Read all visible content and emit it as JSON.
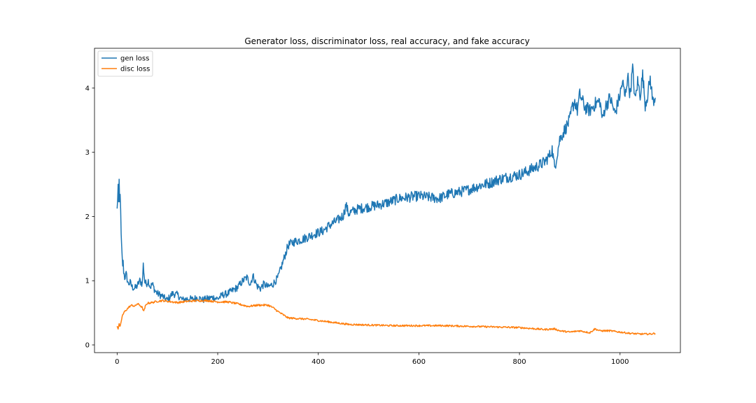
{
  "chart_data": {
    "type": "line",
    "title": "Generator loss, discriminator loss, real accuracy, and fake accuracy",
    "xlabel": "",
    "ylabel": "",
    "xlim": [
      -45,
      1120
    ],
    "ylim": [
      -0.12,
      4.62
    ],
    "xticks": [
      0,
      200,
      400,
      600,
      800,
      1000
    ],
    "yticks": [
      0,
      1,
      2,
      3,
      4
    ],
    "grid": false,
    "legend_position": "upper-left",
    "series": [
      {
        "name": "gen loss",
        "color": "#1f77b4",
        "x": [
          0,
          2,
          3,
          4,
          5,
          6,
          7,
          8,
          9,
          10,
          11,
          12,
          13,
          15,
          18,
          22,
          26,
          30,
          35,
          40,
          45,
          50,
          52,
          55,
          58,
          62,
          66,
          70,
          75,
          80,
          85,
          90,
          95,
          100,
          110,
          120,
          130,
          140,
          150,
          160,
          170,
          180,
          190,
          200,
          210,
          220,
          230,
          240,
          250,
          258,
          265,
          270,
          278,
          285,
          292,
          300,
          310,
          320,
          330,
          340,
          350,
          370,
          390,
          400,
          410,
          420,
          430,
          440,
          450,
          455,
          460,
          480,
          500,
          520,
          540,
          560,
          580,
          600,
          620,
          640,
          660,
          680,
          700,
          720,
          740,
          760,
          780,
          800,
          820,
          840,
          850,
          860,
          865,
          870,
          880,
          890,
          900,
          905,
          910,
          915,
          920,
          930,
          940,
          950,
          960,
          965,
          970,
          980,
          990,
          1000,
          1005,
          1010,
          1015,
          1020,
          1025,
          1030,
          1035,
          1040,
          1045,
          1050,
          1055,
          1060,
          1065,
          1070
        ],
        "y": [
          2.1,
          2.48,
          2.15,
          2.55,
          2.2,
          2.4,
          2.05,
          1.7,
          1.5,
          1.35,
          1.25,
          1.28,
          1.15,
          1.05,
          1.1,
          0.95,
          0.97,
          0.9,
          0.88,
          0.92,
          1.0,
          0.95,
          1.25,
          0.98,
          0.95,
          1.0,
          0.9,
          0.95,
          0.85,
          0.8,
          0.78,
          0.76,
          0.72,
          0.7,
          0.8,
          0.78,
          0.7,
          0.72,
          0.71,
          0.74,
          0.7,
          0.72,
          0.74,
          0.72,
          0.78,
          0.8,
          0.85,
          0.9,
          1.0,
          1.05,
          0.95,
          1.08,
          0.92,
          0.88,
          0.95,
          0.9,
          0.95,
          1.05,
          1.3,
          1.55,
          1.6,
          1.65,
          1.72,
          1.75,
          1.78,
          1.85,
          1.9,
          1.95,
          2.02,
          2.18,
          2.05,
          2.12,
          2.15,
          2.18,
          2.22,
          2.28,
          2.3,
          2.32,
          2.3,
          2.28,
          2.35,
          2.38,
          2.42,
          2.48,
          2.52,
          2.58,
          2.62,
          2.65,
          2.72,
          2.8,
          2.85,
          2.95,
          3.05,
          2.75,
          3.2,
          3.35,
          3.5,
          3.7,
          3.8,
          3.65,
          3.9,
          3.7,
          3.65,
          3.75,
          3.8,
          3.5,
          3.7,
          3.85,
          3.6,
          3.9,
          4.1,
          3.85,
          4.2,
          3.9,
          4.3,
          3.8,
          4.1,
          3.9,
          4.2,
          3.75,
          3.9,
          4.15,
          3.8,
          3.85
        ],
        "noise": 0.07
      },
      {
        "name": "disc loss",
        "color": "#ff7f0e",
        "x": [
          0,
          2,
          4,
          6,
          8,
          10,
          15,
          20,
          25,
          30,
          35,
          40,
          45,
          50,
          53,
          56,
          60,
          70,
          80,
          90,
          100,
          120,
          140,
          160,
          180,
          200,
          220,
          240,
          260,
          280,
          300,
          310,
          320,
          330,
          340,
          360,
          380,
          400,
          420,
          440,
          460,
          500,
          550,
          600,
          650,
          700,
          750,
          800,
          850,
          870,
          880,
          900,
          920,
          940,
          950,
          960,
          980,
          1000,
          1020,
          1040,
          1060,
          1070
        ],
        "y": [
          0.3,
          0.25,
          0.32,
          0.28,
          0.35,
          0.45,
          0.52,
          0.56,
          0.6,
          0.62,
          0.6,
          0.64,
          0.62,
          0.58,
          0.52,
          0.6,
          0.65,
          0.66,
          0.68,
          0.69,
          0.68,
          0.66,
          0.68,
          0.69,
          0.69,
          0.67,
          0.67,
          0.64,
          0.6,
          0.62,
          0.62,
          0.58,
          0.52,
          0.47,
          0.42,
          0.41,
          0.4,
          0.38,
          0.36,
          0.34,
          0.32,
          0.31,
          0.3,
          0.3,
          0.3,
          0.29,
          0.28,
          0.27,
          0.24,
          0.25,
          0.22,
          0.2,
          0.22,
          0.19,
          0.25,
          0.22,
          0.22,
          0.2,
          0.18,
          0.17,
          0.17,
          0.18
        ],
        "noise": 0.02
      }
    ]
  }
}
